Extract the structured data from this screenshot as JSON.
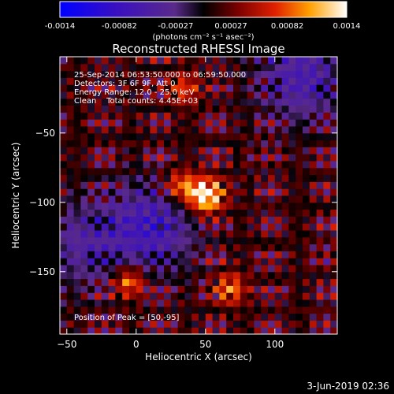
{
  "chart_data": {
    "type": "heatmap",
    "title": "Reconstructed RHESSI Image",
    "xlabel": "Heliocentric X (arcsec)",
    "ylabel": "Heliocentric Y (arcsec)",
    "xlim": [
      -55,
      145
    ],
    "ylim": [
      -195,
      5
    ],
    "xticks": [
      -50,
      0,
      50,
      100
    ],
    "yticks": [
      -50,
      -100,
      -150
    ],
    "colorbar": {
      "min": -0.0014,
      "max": 0.0014,
      "tick_values": [
        -0.0014,
        -0.00082,
        -0.00027,
        0.00027,
        0.00082,
        0.0014
      ],
      "tick_labels": [
        "-0.0014",
        "-0.00082",
        "-0.00027",
        "0.00027",
        "0.00082",
        "0.0014"
      ],
      "units": "(photons cm⁻² s⁻¹ asec⁻²)"
    },
    "annotations": {
      "time_range": "25-Sep-2014 06:53:50.000 to 06:59:50.000",
      "detectors": "Detectors: 3F 6F 9F, Att 0",
      "energy": "Energy Range: 12.0 - 25.0 keV",
      "clean": "Clean    Total counts: 4.45E+03",
      "peak": "Position of Peak = [50,-95]"
    },
    "peak": {
      "x": 50,
      "y": -95,
      "value": 0.0014
    },
    "secondary_sources": [
      {
        "x": -5,
        "y": -157,
        "value": 0.0009
      },
      {
        "x": 68,
        "y": -162,
        "value": 0.00075
      },
      {
        "x": 32,
        "y": -88,
        "value": 0.0008
      },
      {
        "x": 35,
        "y": -18,
        "value": 0.0006
      }
    ],
    "negative_regions": [
      {
        "x": 10,
        "y": -118,
        "value": -0.0008
      },
      {
        "x": 120,
        "y": -10,
        "value": -0.0007
      },
      {
        "x": -40,
        "y": -130,
        "value": -0.0005
      }
    ]
  },
  "footer": {
    "date": "3-Jun-2019 02:36"
  }
}
